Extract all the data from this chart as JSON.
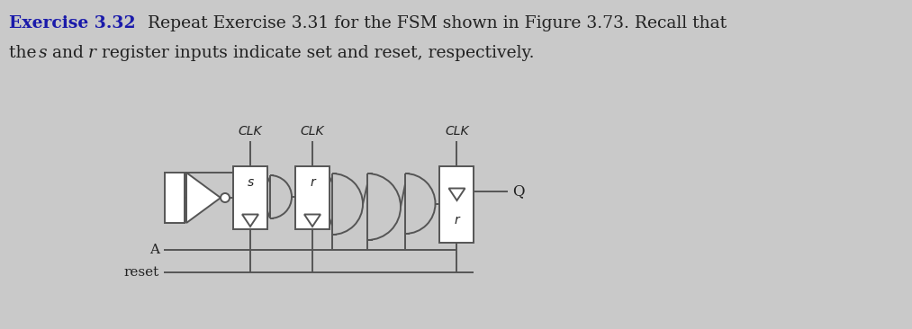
{
  "bg_color": "#c9c9c9",
  "bold_color": "#1a1aaa",
  "text_color": "#222222",
  "circuit_color": "#555555",
  "figsize": [
    10.13,
    3.66
  ],
  "dpi": 100,
  "line1_bold": "Exercise 3.32",
  "line1_rest": " Repeat Exercise 3.31 for the FSM shown in Figure 3.73. Recall that",
  "line2_pre": "the ",
  "line2_s": "s",
  "line2_mid": " and ",
  "line2_r": "r",
  "line2_post": " register inputs indicate set and reset, respectively.",
  "clk1_label": "CLK",
  "clk2_label": "CLK",
  "clk3_label": "CLK",
  "s_label": "s",
  "r1_label": "r",
  "r2_label": "r",
  "A_label": "A",
  "reset_label": "reset",
  "Q_label": "Q"
}
